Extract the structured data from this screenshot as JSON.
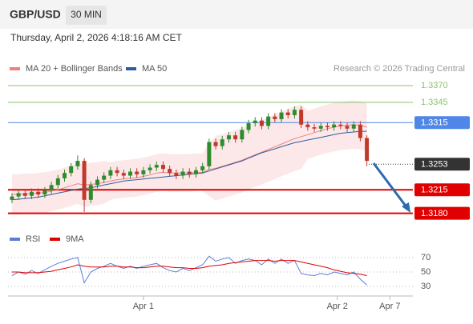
{
  "header": {
    "title": "GBP/USD",
    "interval": "30 MIN",
    "datetime": "Thursday, April 2, 2026 4:18:16 AM CET",
    "source": "Research © 2026 Trading Central"
  },
  "chart_data": [
    {
      "type": "candlestick",
      "xlim": [
        -0.6,
        61
      ],
      "xticks": [
        {
          "value": 20,
          "label": "Apr 1"
        },
        {
          "value": 49.5,
          "label": "Apr 2"
        },
        {
          "value": 57.5,
          "label": "Apr 7"
        }
      ],
      "ylim": [
        1.317,
        1.3385
      ],
      "up_color": "#2e8b2e",
      "down_color": "#c0392b",
      "open": [
        1.32,
        1.3205,
        1.321,
        1.3206,
        1.3212,
        1.3208,
        1.3214,
        1.3222,
        1.3232,
        1.324,
        1.325,
        1.3258,
        1.32,
        1.3222,
        1.323,
        1.3236,
        1.3244,
        1.324,
        1.3236,
        1.3242,
        1.3238,
        1.3244,
        1.3248,
        1.3252,
        1.3246,
        1.324,
        1.3236,
        1.3242,
        1.3238,
        1.3244,
        1.325,
        1.3286,
        1.328,
        1.329,
        1.3296,
        1.329,
        1.3304,
        1.3314,
        1.3318,
        1.331,
        1.3324,
        1.332,
        1.333,
        1.3326,
        1.3334,
        1.3312,
        1.3308,
        1.3306,
        1.331,
        1.3308,
        1.3312,
        1.331,
        1.3306,
        1.3312,
        1.3292
      ],
      "high": [
        1.321,
        1.3215,
        1.3215,
        1.3217,
        1.3217,
        1.3219,
        1.3227,
        1.3237,
        1.3245,
        1.3255,
        1.3266,
        1.3262,
        1.3227,
        1.3235,
        1.3241,
        1.3249,
        1.3249,
        1.3245,
        1.3247,
        1.3247,
        1.3249,
        1.3253,
        1.3257,
        1.3257,
        1.3251,
        1.3245,
        1.3247,
        1.3247,
        1.3249,
        1.3255,
        1.3291,
        1.3291,
        1.3295,
        1.3301,
        1.3301,
        1.3309,
        1.3319,
        1.3323,
        1.3323,
        1.3329,
        1.3329,
        1.3335,
        1.3335,
        1.3339,
        1.3339,
        1.3317,
        1.3313,
        1.3315,
        1.3315,
        1.3317,
        1.3317,
        1.3315,
        1.3317,
        1.3317,
        1.3296
      ],
      "low": [
        1.3195,
        1.32,
        1.3201,
        1.3201,
        1.3203,
        1.3203,
        1.3209,
        1.3217,
        1.3227,
        1.3235,
        1.3245,
        1.3182,
        1.3195,
        1.3217,
        1.3225,
        1.3231,
        1.3235,
        1.3231,
        1.3231,
        1.3233,
        1.3233,
        1.3239,
        1.3243,
        1.3241,
        1.3235,
        1.3231,
        1.3231,
        1.3233,
        1.3233,
        1.3239,
        1.3245,
        1.3275,
        1.3275,
        1.3285,
        1.3285,
        1.3285,
        1.3299,
        1.3309,
        1.3305,
        1.3305,
        1.3315,
        1.3315,
        1.3321,
        1.3321,
        1.3307,
        1.3303,
        1.3301,
        1.3301,
        1.3303,
        1.3303,
        1.3305,
        1.3301,
        1.3301,
        1.3287,
        1.325
      ],
      "close": [
        1.3205,
        1.321,
        1.3206,
        1.3212,
        1.3208,
        1.3214,
        1.3222,
        1.3232,
        1.324,
        1.325,
        1.3258,
        1.32,
        1.3222,
        1.323,
        1.3236,
        1.3244,
        1.324,
        1.3236,
        1.3242,
        1.3238,
        1.3244,
        1.3248,
        1.3252,
        1.3246,
        1.324,
        1.3236,
        1.3242,
        1.3238,
        1.3244,
        1.325,
        1.3286,
        1.328,
        1.329,
        1.3296,
        1.329,
        1.3304,
        1.3314,
        1.3318,
        1.331,
        1.3324,
        1.332,
        1.333,
        1.3326,
        1.3334,
        1.3312,
        1.3308,
        1.3306,
        1.331,
        1.3308,
        1.3312,
        1.331,
        1.3306,
        1.3312,
        1.3292,
        1.3258
      ],
      "series": [
        {
          "name": "MA 20 + Bollinger Bands",
          "color": "#f08080",
          "values": [
            1.3208,
            1.3208,
            1.3209,
            1.3209,
            1.321,
            1.3211,
            1.3213,
            1.3215,
            1.3218,
            1.3221,
            1.3224,
            1.3222,
            1.3223,
            1.3224,
            1.3226,
            1.3228,
            1.323,
            1.3231,
            1.3232,
            1.3233,
            1.3235,
            1.3237,
            1.324,
            1.3241,
            1.324,
            1.324,
            1.324,
            1.324,
            1.3241,
            1.3241,
            1.3245,
            1.3247,
            1.325,
            1.3253,
            1.3256,
            1.3259,
            1.3263,
            1.3267,
            1.3271,
            1.3275,
            1.3279,
            1.3283,
            1.3287,
            1.3291,
            1.3294,
            1.3297,
            1.33,
            1.3303,
            1.3306,
            1.3308,
            1.331,
            1.3311,
            1.3312,
            1.3311,
            1.3308
          ],
          "upper": [
            1.3238,
            1.3238,
            1.3239,
            1.3239,
            1.324,
            1.3241,
            1.3243,
            1.3245,
            1.3248,
            1.3251,
            1.3254,
            1.3254,
            1.3255,
            1.3256,
            1.3258,
            1.3256,
            1.3258,
            1.3259,
            1.326,
            1.3261,
            1.3263,
            1.3265,
            1.3268,
            1.3269,
            1.3268,
            1.3268,
            1.3268,
            1.3268,
            1.3269,
            1.3269,
            1.3285,
            1.3295,
            1.3298,
            1.3301,
            1.3304,
            1.3307,
            1.3311,
            1.3315,
            1.3319,
            1.3323,
            1.3327,
            1.3331,
            1.3335,
            1.3339,
            1.3342,
            1.3333,
            1.3336,
            1.3339,
            1.3342,
            1.3344,
            1.3346,
            1.3347,
            1.3348,
            1.3347,
            1.3344
          ],
          "lower": [
            1.3178,
            1.3178,
            1.3179,
            1.3179,
            1.318,
            1.3181,
            1.3183,
            1.3185,
            1.3188,
            1.3191,
            1.3194,
            1.319,
            1.3191,
            1.3192,
            1.3194,
            1.32,
            1.3202,
            1.3203,
            1.3204,
            1.3205,
            1.3207,
            1.3209,
            1.3212,
            1.3213,
            1.3212,
            1.3212,
            1.3212,
            1.3212,
            1.3213,
            1.3213,
            1.3205,
            1.3199,
            1.3202,
            1.3205,
            1.3208,
            1.3211,
            1.3215,
            1.3219,
            1.3223,
            1.3227,
            1.3231,
            1.3235,
            1.3239,
            1.3243,
            1.3246,
            1.3261,
            1.3264,
            1.3267,
            1.327,
            1.3272,
            1.3274,
            1.3275,
            1.3276,
            1.3275,
            1.3272
          ]
        },
        {
          "name": "MA 50",
          "color": "#2d5f9e",
          "values": [
            1.32,
            1.3201,
            1.3202,
            1.3203,
            1.3204,
            1.3206,
            1.3208,
            1.321,
            1.3212,
            1.3214,
            1.3216,
            1.3217,
            1.3218,
            1.322,
            1.3222,
            1.3224,
            1.3226,
            1.3228,
            1.3229,
            1.323,
            1.3231,
            1.3232,
            1.3233,
            1.3234,
            1.3235,
            1.3236,
            1.3237,
            1.3238,
            1.3239,
            1.324,
            1.3243,
            1.3246,
            1.3249,
            1.3252,
            1.3255,
            1.3258,
            1.3262,
            1.3266,
            1.327,
            1.3273,
            1.3276,
            1.3279,
            1.3282,
            1.3285,
            1.3287,
            1.3289,
            1.3291,
            1.3293,
            1.3295,
            1.3297,
            1.3299,
            1.33,
            1.3301,
            1.3302,
            1.3302
          ]
        }
      ],
      "levels": [
        {
          "value": 1.337,
          "label": "1.3370",
          "color": "#8dc26f",
          "line": "solid",
          "boxed": false
        },
        {
          "value": 1.3345,
          "label": "1.3345",
          "color": "#8dc26f",
          "line": "solid",
          "boxed": false
        },
        {
          "value": 1.3315,
          "label": "1.3315",
          "color": "#4f86e8",
          "line": "solid",
          "boxed": true
        },
        {
          "value": 1.3253,
          "label": "1.3253",
          "color": "#333333",
          "line": "dotted",
          "boxed": true
        },
        {
          "value": 1.3215,
          "label": "1.3215",
          "color": "#e00000",
          "line": "solid",
          "boxed": true
        },
        {
          "value": 1.318,
          "label": "1.3180",
          "color": "#e00000",
          "line": "solid",
          "boxed": true
        }
      ]
    },
    {
      "type": "line",
      "xlim": [
        -0.6,
        61
      ],
      "ylim": [
        19,
        78
      ],
      "yticks": [
        30,
        50,
        70
      ],
      "grid": true,
      "series": [
        {
          "name": "RSI",
          "color": "#5b7fd6",
          "values": [
            45,
            50,
            47,
            52,
            48,
            53,
            58,
            62,
            65,
            68,
            70,
            35,
            50,
            55,
            58,
            62,
            58,
            55,
            58,
            55,
            58,
            60,
            62,
            56,
            52,
            50,
            55,
            52,
            56,
            60,
            72,
            65,
            68,
            70,
            62,
            66,
            68,
            66,
            60,
            68,
            62,
            68,
            62,
            66,
            48,
            46,
            45,
            48,
            46,
            50,
            48,
            46,
            50,
            40,
            32
          ]
        },
        {
          "name": "9MA",
          "color": "#e00000",
          "values": [
            50,
            50,
            49,
            49,
            49,
            50,
            51,
            53,
            55,
            57,
            60,
            58,
            57,
            57,
            57,
            58,
            58,
            57,
            57,
            56,
            56,
            57,
            58,
            58,
            57,
            56,
            56,
            55,
            55,
            56,
            58,
            59,
            60,
            62,
            63,
            64,
            65,
            66,
            66,
            66,
            65,
            66,
            66,
            66,
            64,
            62,
            60,
            58,
            56,
            53,
            51,
            49,
            48,
            47,
            45
          ]
        }
      ]
    }
  ]
}
